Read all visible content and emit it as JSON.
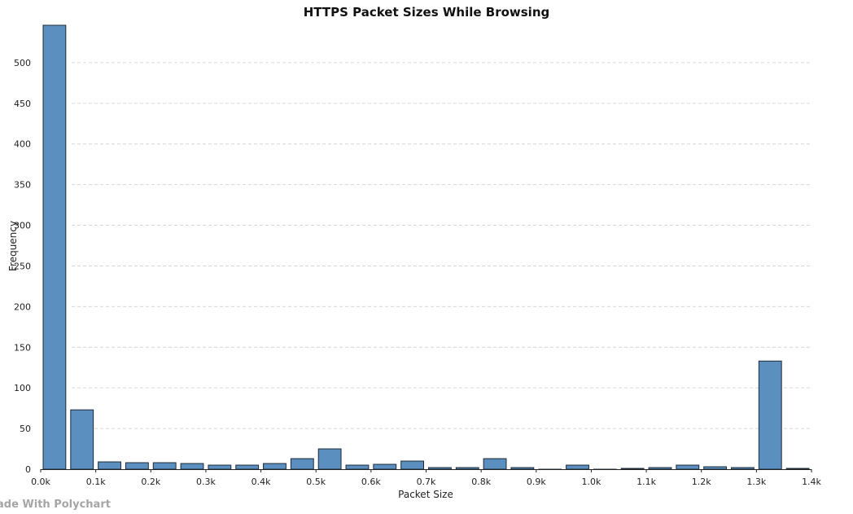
{
  "chart_data": {
    "type": "bar",
    "title": "HTTPS Packet Sizes While Browsing",
    "xlabel": "Packet Size",
    "ylabel": "Frequency",
    "xlim": [
      0,
      1400
    ],
    "ylim": [
      0,
      550
    ],
    "bin_width": 50,
    "x_ticks": [
      "0.0k",
      "0.1k",
      "0.2k",
      "0.3k",
      "0.4k",
      "0.5k",
      "0.6k",
      "0.7k",
      "0.8k",
      "0.9k",
      "1.0k",
      "1.1k",
      "1.2k",
      "1.3k",
      "1.4k"
    ],
    "y_ticks": [
      0,
      50,
      100,
      150,
      200,
      250,
      300,
      350,
      400,
      450,
      500
    ],
    "bins_start": [
      0,
      50,
      100,
      150,
      200,
      250,
      300,
      350,
      400,
      450,
      500,
      550,
      600,
      650,
      700,
      750,
      800,
      850,
      900,
      950,
      1000,
      1050,
      1100,
      1150,
      1200,
      1250,
      1300,
      1350
    ],
    "values": [
      546,
      73,
      9,
      8,
      8,
      7,
      5,
      5,
      7,
      13,
      25,
      5,
      6,
      10,
      2,
      2,
      13,
      2,
      0,
      5,
      0,
      1,
      2,
      5,
      3,
      2,
      133,
      1
    ],
    "grid": "horizontal-dashed",
    "bar_color": "#5a8fc0"
  },
  "watermark": "ade With Polychart"
}
